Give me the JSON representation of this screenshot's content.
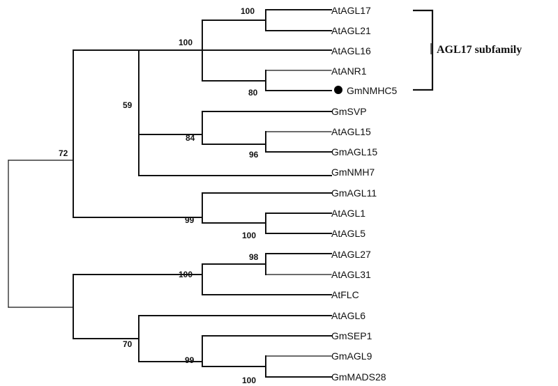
{
  "tree": {
    "leaves": [
      {
        "label": "AtAGL17"
      },
      {
        "label": "AtAGL21"
      },
      {
        "label": "AtAGL16"
      },
      {
        "label": "AtANR1"
      },
      {
        "label": "GmNMHC5",
        "marked": true
      },
      {
        "label": "GmSVP"
      },
      {
        "label": "AtAGL15"
      },
      {
        "label": "GmAGL15"
      },
      {
        "label": "GmNMH7"
      },
      {
        "label": "GmAGL11"
      },
      {
        "label": "AtAGL1"
      },
      {
        "label": "AtAGL5"
      },
      {
        "label": "AtAGL27"
      },
      {
        "label": "AtAGL31"
      },
      {
        "label": "AtFLC"
      },
      {
        "label": "AtAGL6"
      },
      {
        "label": "GmSEP1"
      },
      {
        "label": "GmAGL9"
      },
      {
        "label": "GmMADS28"
      }
    ],
    "bootstrap": [
      {
        "value": "100"
      },
      {
        "value": "100"
      },
      {
        "value": "80"
      },
      {
        "value": "59"
      },
      {
        "value": "84"
      },
      {
        "value": "96"
      },
      {
        "value": "72"
      },
      {
        "value": "99"
      },
      {
        "value": "100"
      },
      {
        "value": "98"
      },
      {
        "value": "100"
      },
      {
        "value": "70"
      },
      {
        "value": "99"
      },
      {
        "value": "100"
      }
    ],
    "subfamily_label": "AGL17 subfamily",
    "colors": {
      "line": "#111111",
      "marker": "#000000",
      "background": "#ffffff"
    }
  }
}
